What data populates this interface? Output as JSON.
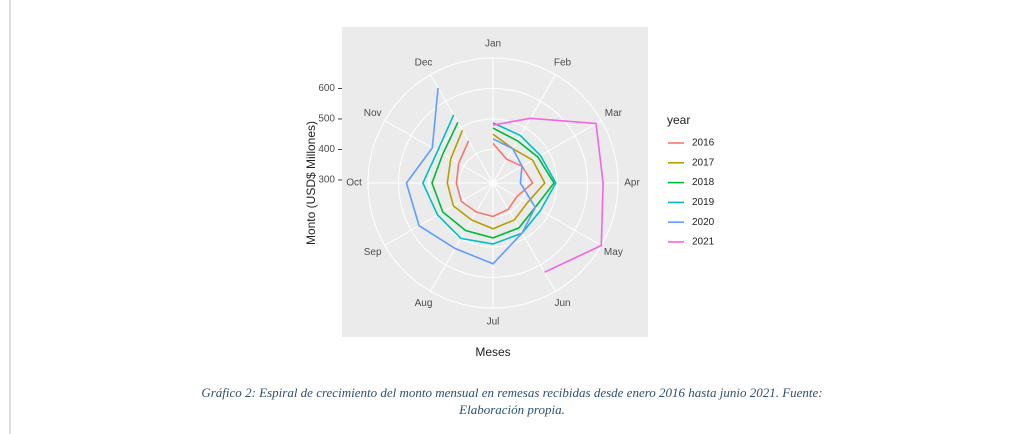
{
  "chart_data": {
    "type": "polar_line",
    "x_label": "Meses",
    "y_label": "Monto (USD$ Millones)",
    "legend_title": "year",
    "categories": [
      "Jan",
      "Feb",
      "Mar",
      "Apr",
      "May",
      "Jun",
      "Jul",
      "Aug",
      "Sep",
      "Oct",
      "Nov",
      "Dec"
    ],
    "ylim": [
      290,
      700
    ],
    "yticks": [
      300,
      400,
      500,
      600
    ],
    "grid": true,
    "series": [
      {
        "name": "2016",
        "color": "#f8766d",
        "values": [
          420,
          380,
          400,
          420,
          380,
          390,
          400,
          400,
          410,
          410,
          420,
          450
        ]
      },
      {
        "name": "2017",
        "color": "#b79f00",
        "values": [
          450,
          420,
          440,
          460,
          420,
          430,
          440,
          430,
          440,
          440,
          450,
          490
        ]
      },
      {
        "name": "2018",
        "color": "#00ba38",
        "values": [
          470,
          450,
          460,
          490,
          450,
          460,
          470,
          470,
          480,
          490,
          480,
          520
        ]
      },
      {
        "name": "2019",
        "color": "#00bfc4",
        "values": [
          487,
          470,
          470,
          496,
          470,
          480,
          490,
          500,
          500,
          520,
          500,
          548
        ]
      },
      {
        "name": "2020",
        "color": "#619cff",
        "values": [
          435,
          420,
          400,
          380,
          450,
          480,
          555,
          538,
          570,
          574,
          520,
          650
        ]
      },
      {
        "name": "2021",
        "color": "#f564e3",
        "values": [
          480,
          535,
          680,
          651,
          700,
          628,
          null,
          null,
          null,
          null,
          null,
          null
        ]
      }
    ]
  },
  "caption": {
    "prefix": "Gráfico ",
    "number": "2",
    "line1": ": Espiral de crecimiento del monto mensual en remesas recibidas desde enero 2016 hasta junio 2021. Fuente:",
    "line2": "Elaboración propia."
  }
}
